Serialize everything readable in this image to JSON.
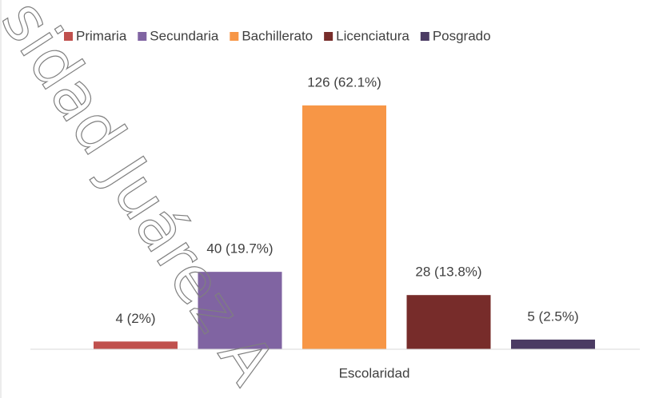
{
  "chart_data": {
    "type": "bar",
    "xlabel": "Escolaridad",
    "watermark": "sidad Juárez A",
    "legend": "top",
    "ylim": [
      0,
      140
    ],
    "series": [
      {
        "name": "Primaria",
        "color": "#c0504d",
        "values": [
          4
        ],
        "value_labels": [
          "4 (2%)"
        ]
      },
      {
        "name": "Secundaria",
        "color": "#8064a2",
        "values": [
          40
        ],
        "value_labels": [
          "40 (19.7%)"
        ]
      },
      {
        "name": "Bachillerato",
        "color": "#f79646",
        "values": [
          126
        ],
        "value_labels": [
          "126 (62.1%)"
        ]
      },
      {
        "name": "Licenciatura",
        "color": "#772c2a",
        "values": [
          28
        ],
        "value_labels": [
          "28 (13.8%)"
        ]
      },
      {
        "name": "Posgrado",
        "color": "#4b3b63",
        "values": [
          5
        ],
        "value_labels": [
          "5 (2.5%)"
        ]
      }
    ]
  }
}
